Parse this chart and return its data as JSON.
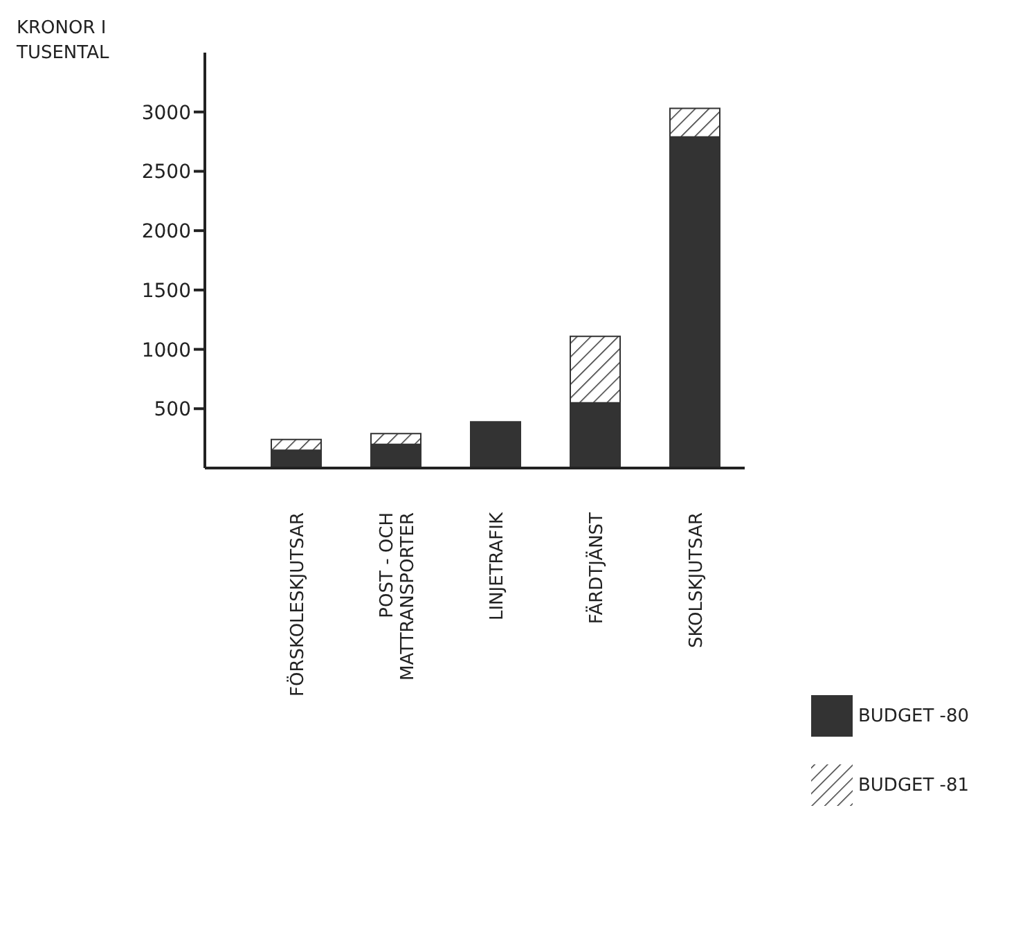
{
  "chart_data": {
    "type": "bar",
    "stacked": true,
    "ylabel": "KRONOR I TUSENTAL",
    "categories": [
      "FÖRSKOLESKJUTSAR",
      "POST - OCH\nMATTRANSPORTER",
      "LINJETRAFIK",
      "FÄRDTJÄNST",
      "SKOLSKJUTSAR"
    ],
    "series": [
      {
        "name": "BUDGET -80",
        "color": "#333333",
        "values": [
          150,
          200,
          390,
          550,
          2790
        ]
      },
      {
        "name": "BUDGET -81",
        "color": "#333333",
        "values": [
          90,
          90,
          0,
          560,
          240
        ]
      }
    ],
    "ylim": [
      0,
      3500
    ],
    "yticks": [
      500,
      1000,
      1500,
      2000,
      2500,
      3000
    ],
    "legend": "right"
  }
}
